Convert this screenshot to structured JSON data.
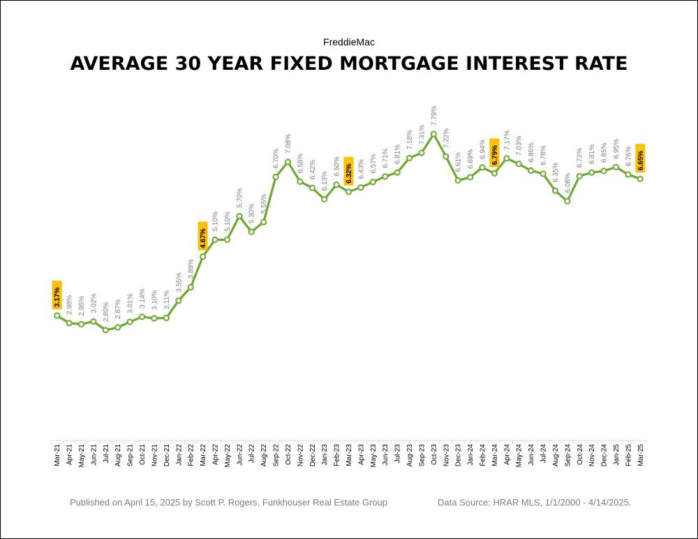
{
  "header": {
    "subtitle": "FreddieMac",
    "title": "AVERAGE 30 YEAR FIXED MORTGAGE INTEREST RATE"
  },
  "footer": {
    "left": "Published on April 15, 2025 by Scott P. Rogers, Funkhouser Real Estate Group",
    "right": "Data Source: HRAR MLS, 1/1/2000 - 4/14/2025."
  },
  "chart_data": {
    "type": "line",
    "title": "AVERAGE 30 YEAR FIXED MORTGAGE INTEREST RATE",
    "subtitle": "FreddieMac",
    "xlabel": "",
    "ylabel": "",
    "ylim": [
      0,
      9
    ],
    "grid": false,
    "line_color": "#6aaa2e",
    "highlight_color": "#ffc000",
    "categories": [
      "Mar-21",
      "Apr-21",
      "May-21",
      "Jun-21",
      "Jul-21",
      "Aug-21",
      "Sep-21",
      "Oct-21",
      "Nov-21",
      "Dec-21",
      "Jan-22",
      "Feb-22",
      "Mar-22",
      "Apr-22",
      "May-22",
      "Jun-22",
      "Jul-22",
      "Aug-22",
      "Sep-22",
      "Oct-22",
      "Nov-22",
      "Dec-22",
      "Jan-23",
      "Feb-23",
      "Mar-23",
      "Apr-23",
      "May-23",
      "Jun-23",
      "Jul-23",
      "Aug-23",
      "Sep-23",
      "Oct-23",
      "Nov-23",
      "Dec-23",
      "Jan-24",
      "Feb-24",
      "Mar-24",
      "Apr-24",
      "May-24",
      "Jun-24",
      "Jul-24",
      "Aug-24",
      "Sep-24",
      "Oct-24",
      "Nov-24",
      "Dec-24",
      "Jan-25",
      "Feb-25",
      "Mar-25"
    ],
    "values": [
      3.17,
      2.98,
      2.95,
      3.02,
      2.8,
      2.87,
      3.01,
      3.14,
      3.1,
      3.11,
      3.55,
      3.89,
      4.67,
      5.1,
      5.1,
      5.7,
      5.3,
      5.55,
      6.7,
      7.08,
      6.58,
      6.42,
      6.13,
      6.5,
      6.32,
      6.43,
      6.57,
      6.71,
      6.81,
      7.18,
      7.31,
      7.79,
      7.22,
      6.61,
      6.69,
      6.94,
      6.79,
      7.17,
      7.03,
      6.86,
      6.78,
      6.35,
      6.08,
      6.72,
      6.81,
      6.85,
      6.95,
      6.76,
      6.65
    ],
    "labels": [
      "3.17%",
      "2.98%",
      "2.95%",
      "3.02%",
      "2.80%",
      "2.87%",
      "3.01%",
      "3.14%",
      "3.10%",
      "3.11%",
      "3.55%",
      "3.89%",
      "4.67%",
      "5.10%",
      "5.10%",
      "5.70%",
      "5.30%",
      "5.55%",
      "6.70%",
      "7.08%",
      "6.58%",
      "6.42%",
      "6.13%",
      "6.50%",
      "6.32%",
      "6.43%",
      "6.57%",
      "6.71%",
      "6.81%",
      "7.18%",
      "7.31%",
      "7.79%",
      "7.22%",
      "6.61%",
      "6.69%",
      "6.94%",
      "6.79%",
      "7.17%",
      "7.03%",
      "6.86%",
      "6.78%",
      "6.35%",
      "6.08%",
      "6.72%",
      "6.81%",
      "6.85%",
      "6.95%",
      "6.76%",
      "6.65%"
    ],
    "highlighted": [
      0,
      12,
      24,
      36,
      48
    ]
  }
}
